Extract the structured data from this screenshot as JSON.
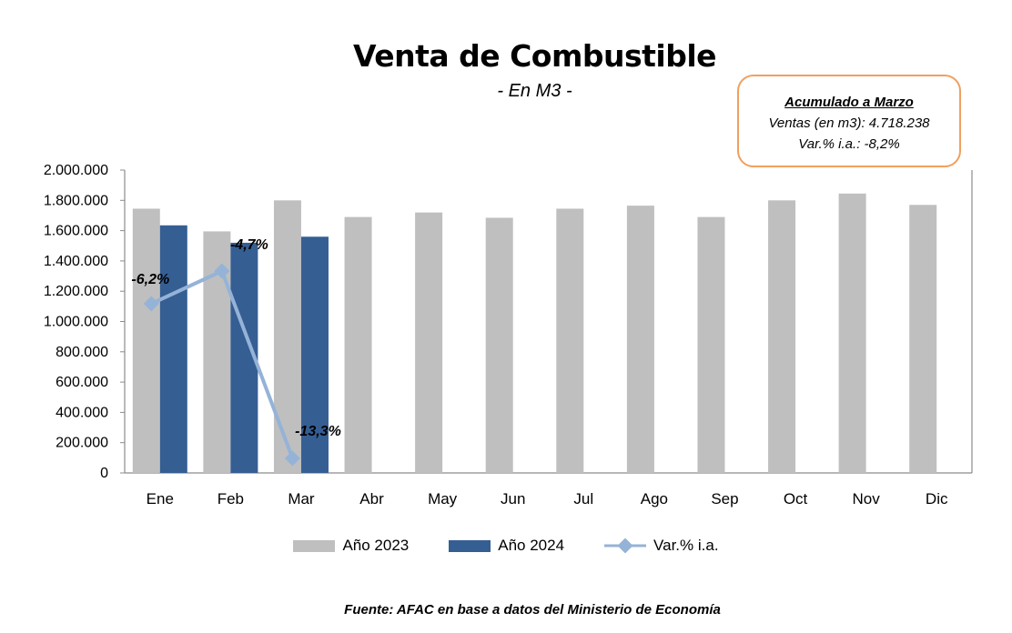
{
  "chart_data": {
    "type": "bar",
    "title": "Venta de Combustible",
    "subtitle": "- En M3 -",
    "categories": [
      "Ene",
      "Feb",
      "Mar",
      "Abr",
      "May",
      "Jun",
      "Jul",
      "Ago",
      "Sep",
      "Oct",
      "Nov",
      "Dic"
    ],
    "series": [
      {
        "name": "Año 2023",
        "type": "bar",
        "color": "#bfbfbf",
        "values": [
          1745000,
          1595000,
          1800000,
          1690000,
          1720000,
          1685000,
          1745000,
          1765000,
          1690000,
          1800000,
          1845000,
          1770000
        ]
      },
      {
        "name": "Año 2024",
        "type": "bar",
        "color": "#355e93",
        "values": [
          1635000,
          1520000,
          1560000,
          null,
          null,
          null,
          null,
          null,
          null,
          null,
          null,
          null
        ]
      },
      {
        "name": "Var.% i.a.",
        "type": "line",
        "color": "#95b3d7",
        "values": [
          -6.2,
          -4.7,
          -13.3,
          null,
          null,
          null,
          null,
          null,
          null,
          null,
          null,
          null
        ],
        "labels": [
          "-6,2%",
          "-4,7%",
          "-13,3%"
        ]
      }
    ],
    "yticks": [
      "0",
      "200.000",
      "400.000",
      "600.000",
      "800.000",
      "1.000.000",
      "1.200.000",
      "1.400.000",
      "1.600.000",
      "1.800.000",
      "2.000.000"
    ],
    "ylim": [
      0,
      2000000
    ],
    "legend_position": "bottom"
  },
  "summary": {
    "heading": "Acumulado a Marzo",
    "sales": "Ventas (en m3):  4.718.238",
    "var": "Var.% i.a.: -8,2%"
  },
  "source": "Fuente: AFAC en base a datos del Ministerio de Economía"
}
